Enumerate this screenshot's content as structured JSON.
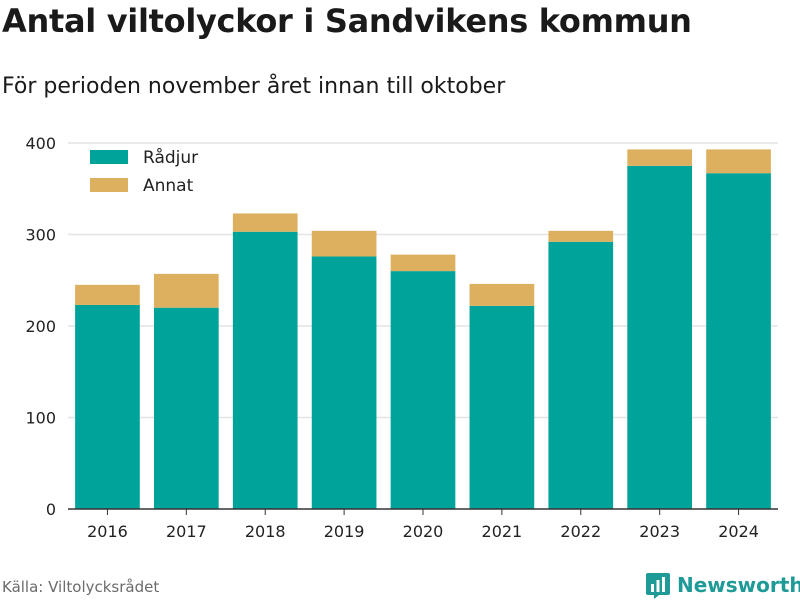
{
  "header": {
    "title": "Antal viltolyckor i Sandvikens kommun",
    "subtitle": "För perioden november året innan till oktober"
  },
  "footer": {
    "source": "Källa: Viltolycksrådet",
    "brand": "Newsworthy",
    "brand_logo_icon": "bar-chart-logo-icon"
  },
  "colors": {
    "radjur": "#00a39a",
    "annat": "#ddb05f",
    "grid": "#e3e3e3",
    "axis": "#333333",
    "brand": "#1e9a97"
  },
  "chart_data": {
    "type": "bar",
    "stacked": true,
    "title": "Antal viltolyckor i Sandvikens kommun",
    "subtitle": "För perioden november året innan till oktober",
    "categories": [
      "2016",
      "2017",
      "2018",
      "2019",
      "2020",
      "2021",
      "2022",
      "2023",
      "2024"
    ],
    "series": [
      {
        "name": "Rådjur",
        "values": [
          223,
          220,
          303,
          276,
          260,
          222,
          292,
          375,
          367
        ]
      },
      {
        "name": "Annat",
        "values": [
          22,
          37,
          20,
          28,
          18,
          24,
          12,
          18,
          26
        ]
      }
    ],
    "ylim": [
      0,
      400
    ],
    "yticks": [
      0,
      100,
      200,
      300,
      400
    ],
    "grid": true,
    "legend_position": "top-left"
  }
}
